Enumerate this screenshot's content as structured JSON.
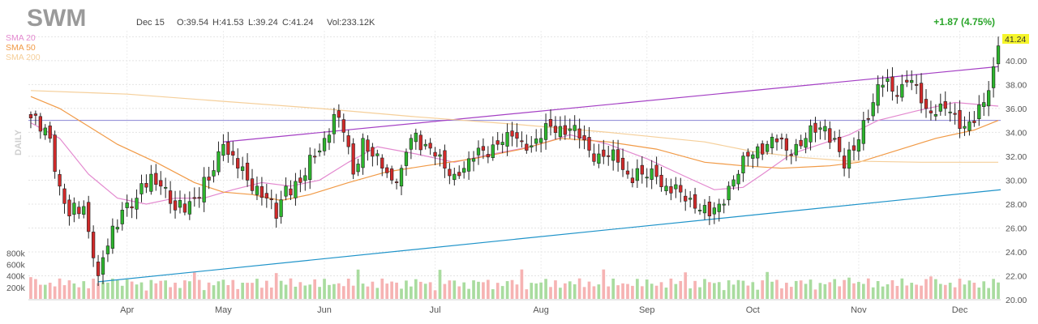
{
  "header": {
    "symbol": "SWM",
    "date": "Dec 15",
    "open": "O:39.54",
    "high": "H:41.53",
    "low": "L:39.24",
    "close": "C:41.24",
    "volume": "Vol:233.12K",
    "change": "+1.87 (4.75%)",
    "last_price": "41.24"
  },
  "legend": [
    {
      "label": "SMA 20",
      "color": "#e389cf"
    },
    {
      "label": "SMA 50",
      "color": "#f19a46"
    },
    {
      "label": "SMA 200",
      "color": "#f5cf9a"
    }
  ],
  "period_label": "DAILY",
  "colors": {
    "up": "#2db52d",
    "down": "#d12a2a",
    "vol_up": "#a9dc9f",
    "vol_down": "#f6b3b3",
    "upper_trend": "#a43fc4",
    "lower_trend": "#1e93c9",
    "horizontal": "#8a84d4",
    "price_highlight": "#f5f52a"
  },
  "chart_data": {
    "type": "candlestick",
    "y_ticks": [
      "20.00",
      "22.00",
      "24.00",
      "26.00",
      "28.00",
      "30.00",
      "32.00",
      "34.00",
      "36.00",
      "38.00",
      "40.00",
      "42.00"
    ],
    "ylim": [
      20,
      42.5
    ],
    "volume_ticks": [
      "200k",
      "400k",
      "600k",
      "800k"
    ],
    "x_ticks": [
      "Apr",
      "May",
      "Jun",
      "Jul",
      "Aug",
      "Sep",
      "Oct",
      "Nov",
      "Dec"
    ],
    "x_tick_index": [
      20,
      40,
      61,
      84,
      106,
      128,
      150,
      172,
      193
    ],
    "bar_count": 202,
    "anchors": [
      [
        0,
        35.2
      ],
      [
        4,
        33.5
      ],
      [
        6,
        29.5
      ],
      [
        8,
        27
      ],
      [
        11,
        27.8
      ],
      [
        13,
        23.5
      ],
      [
        14,
        22
      ],
      [
        16,
        24.5
      ],
      [
        19,
        27.5
      ],
      [
        22,
        28.5
      ],
      [
        25,
        30.5
      ],
      [
        27,
        29.5
      ],
      [
        30,
        27.5
      ],
      [
        34,
        28.5
      ],
      [
        37,
        30
      ],
      [
        40,
        33
      ],
      [
        43,
        31
      ],
      [
        45,
        30
      ],
      [
        47,
        29.5
      ],
      [
        49,
        28.5
      ],
      [
        51,
        26.8
      ],
      [
        53,
        29.5
      ],
      [
        56,
        29.8
      ],
      [
        59,
        32
      ],
      [
        61,
        33.5
      ],
      [
        63,
        35.5
      ],
      [
        65,
        34
      ],
      [
        67,
        30.5
      ],
      [
        69,
        33.5
      ],
      [
        71,
        32
      ],
      [
        73,
        31
      ],
      [
        75,
        30
      ],
      [
        77,
        31
      ],
      [
        79,
        33.5
      ],
      [
        82,
        33
      ],
      [
        84,
        32
      ],
      [
        86,
        31
      ],
      [
        88,
        30.5
      ],
      [
        91,
        31.8
      ],
      [
        94,
        32.5
      ],
      [
        97,
        33
      ],
      [
        99,
        34
      ],
      [
        101,
        33.5
      ],
      [
        103,
        32.5
      ],
      [
        106,
        33.5
      ],
      [
        108,
        34.5
      ],
      [
        110,
        34.5
      ],
      [
        112,
        34.3
      ],
      [
        114,
        33.5
      ],
      [
        116,
        32.5
      ],
      [
        118,
        32.2
      ],
      [
        120,
        32
      ],
      [
        122,
        31.5
      ],
      [
        124,
        30.5
      ],
      [
        127,
        30.5
      ],
      [
        130,
        30.3
      ],
      [
        132,
        29.5
      ],
      [
        135,
        29
      ],
      [
        137,
        28.5
      ],
      [
        139,
        27.5
      ],
      [
        141,
        27
      ],
      [
        143,
        28
      ],
      [
        145,
        29.5
      ],
      [
        147,
        30.5
      ],
      [
        149,
        32
      ],
      [
        151,
        32.8
      ],
      [
        153,
        33
      ],
      [
        155,
        33.2
      ],
      [
        157,
        32.5
      ],
      [
        159,
        33
      ],
      [
        161,
        33.5
      ],
      [
        163,
        34
      ],
      [
        165,
        34.5
      ],
      [
        167,
        33.5
      ],
      [
        169,
        31
      ],
      [
        171,
        32.5
      ],
      [
        173,
        35
      ],
      [
        175,
        36.5
      ],
      [
        176,
        38
      ],
      [
        178,
        38.5
      ],
      [
        180,
        37
      ],
      [
        182,
        38.2
      ],
      [
        184,
        38
      ],
      [
        186,
        36
      ],
      [
        188,
        35.5
      ],
      [
        190,
        36
      ],
      [
        192,
        35.5
      ],
      [
        194,
        34.5
      ],
      [
        196,
        34.8
      ],
      [
        198,
        36.5
      ],
      [
        199,
        37.5
      ],
      [
        200,
        39.5
      ],
      [
        201,
        41.24
      ]
    ],
    "moving_averages": [
      {
        "name": "SMA 20",
        "color": "#e389cf",
        "values": [
          [
            0,
            34.8
          ],
          [
            6,
            33.5
          ],
          [
            12,
            30.5
          ],
          [
            18,
            28.5
          ],
          [
            24,
            28
          ],
          [
            30,
            28.5
          ],
          [
            36,
            28.5
          ],
          [
            42,
            29.2
          ],
          [
            48,
            29.8
          ],
          [
            54,
            29.5
          ],
          [
            60,
            30
          ],
          [
            66,
            31.5
          ],
          [
            72,
            32.8
          ],
          [
            80,
            32.2
          ],
          [
            88,
            31.5
          ],
          [
            96,
            32.2
          ],
          [
            104,
            32.8
          ],
          [
            112,
            33.8
          ],
          [
            120,
            33
          ],
          [
            128,
            31.8
          ],
          [
            136,
            30.3
          ],
          [
            142,
            29.2
          ],
          [
            148,
            29.4
          ],
          [
            152,
            30.5
          ],
          [
            158,
            32.2
          ],
          [
            164,
            33
          ],
          [
            170,
            33.8
          ],
          [
            176,
            35
          ],
          [
            184,
            35.8
          ],
          [
            192,
            36.5
          ],
          [
            201,
            36.2
          ]
        ]
      },
      {
        "name": "SMA 50",
        "color": "#f19a46",
        "values": [
          [
            0,
            37
          ],
          [
            6,
            36
          ],
          [
            12,
            34.5
          ],
          [
            18,
            33
          ],
          [
            26,
            31.5
          ],
          [
            34,
            29.8
          ],
          [
            40,
            29
          ],
          [
            46,
            28.8
          ],
          [
            52,
            28.3
          ],
          [
            58,
            28.8
          ],
          [
            66,
            29.8
          ],
          [
            74,
            30.7
          ],
          [
            82,
            31.2
          ],
          [
            92,
            31.8
          ],
          [
            102,
            32.6
          ],
          [
            110,
            33.5
          ],
          [
            120,
            33.2
          ],
          [
            130,
            32.6
          ],
          [
            140,
            31.5
          ],
          [
            148,
            31.2
          ],
          [
            156,
            31
          ],
          [
            166,
            31.2
          ],
          [
            172,
            31.5
          ],
          [
            180,
            32.5
          ],
          [
            188,
            33.5
          ],
          [
            196,
            34.2
          ],
          [
            201,
            35
          ]
        ]
      },
      {
        "name": "SMA 200",
        "color": "#f5cf9a",
        "values": [
          [
            0,
            37.5
          ],
          [
            20,
            37.2
          ],
          [
            40,
            36.6
          ],
          [
            60,
            36
          ],
          [
            80,
            35.3
          ],
          [
            100,
            34.7
          ],
          [
            120,
            34
          ],
          [
            140,
            33.2
          ],
          [
            150,
            32.4
          ],
          [
            160,
            31.9
          ],
          [
            170,
            31.6
          ],
          [
            185,
            31.5
          ],
          [
            201,
            31.5
          ]
        ]
      }
    ],
    "annotations": {
      "upper_trend": [
        [
          40,
          33.2
        ],
        [
          201,
          39.5
        ]
      ],
      "lower_trend": [
        [
          14,
          21.5
        ],
        [
          201,
          29.2
        ]
      ],
      "horizontal_level": 35
    }
  }
}
